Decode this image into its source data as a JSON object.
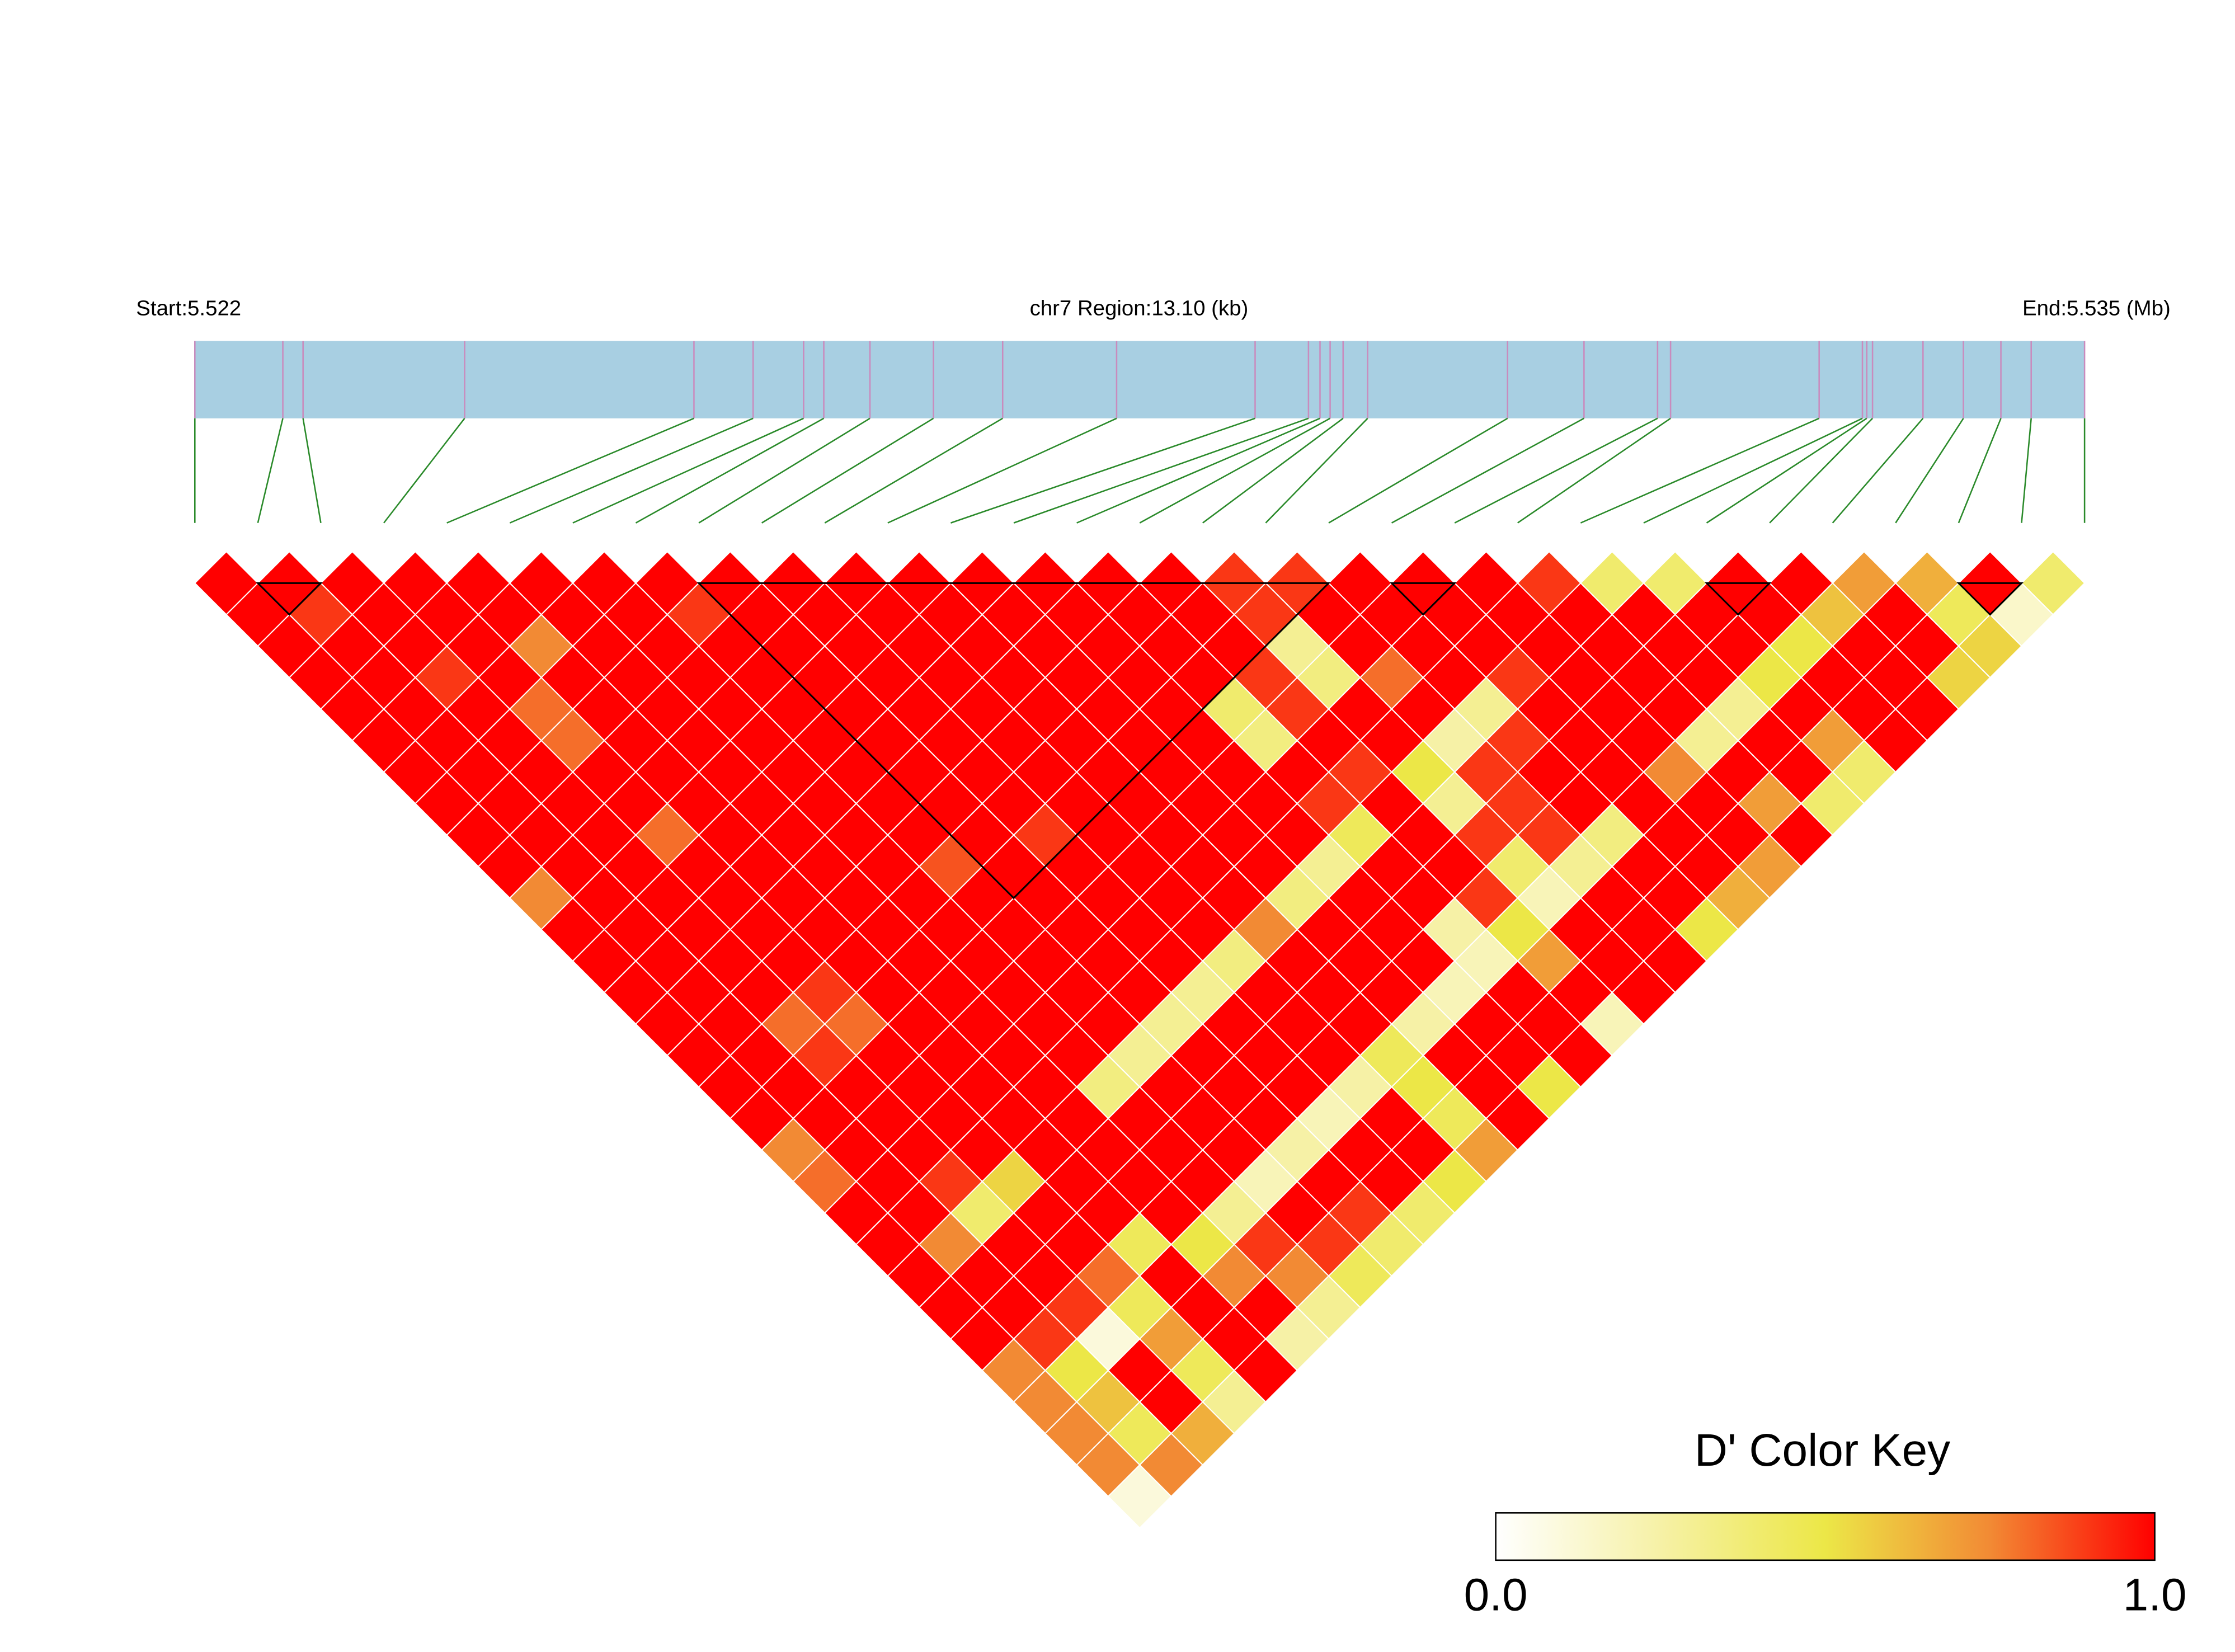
{
  "chart_data": {
    "type": "heatmap",
    "start_label": "Start:5.522",
    "region_label": "chr7 Region:13.10 (kb)",
    "end_label": "End:5.535 (Mb)",
    "xlim": [
      5.522,
      5.5351
    ],
    "positions": [
      5.522,
      5.52261,
      5.52275,
      5.52387,
      5.52546,
      5.52587,
      5.52622,
      5.52636,
      5.52668,
      5.52712,
      5.5276,
      5.52839,
      5.52935,
      5.52972,
      5.5298,
      5.52987,
      5.52996,
      5.53013,
      5.5311,
      5.53163,
      5.53214,
      5.53223,
      5.53326,
      5.53356,
      5.53359,
      5.53363,
      5.53398,
      5.53426,
      5.53452,
      5.53473,
      5.5351
    ],
    "bar_color": "#a8cfe2",
    "snp_line_color": "#c98bbd",
    "connector_color": "#2a8a2a",
    "dprime": [
      [
        1,
        1,
        1,
        1,
        1,
        1,
        1,
        1,
        1,
        1,
        1,
        1,
        1,
        1,
        1,
        1,
        0.9,
        0.9,
        1,
        1,
        1,
        0.9,
        0.4,
        0.4,
        1,
        1,
        0.7,
        0.65,
        1,
        0.4
      ],
      [
        1,
        0.9,
        1,
        1,
        1,
        1,
        1,
        0.9,
        1,
        1,
        1,
        1,
        1,
        1,
        1,
        1,
        0.9,
        1,
        1,
        1,
        1,
        1,
        1,
        1,
        1,
        0.6,
        1,
        0.45,
        0.15
      ],
      [
        1,
        1,
        1,
        1,
        0.75,
        1,
        1,
        1,
        1,
        1,
        1,
        1,
        1,
        1,
        1,
        1,
        0.3,
        1,
        1,
        1,
        1,
        1,
        1,
        1,
        0.5,
        1,
        1,
        0.55
      ],
      [
        1,
        1,
        0.9,
        1,
        1,
        1,
        1,
        1,
        1,
        1,
        1,
        1,
        1,
        1,
        1,
        0.9,
        0.35,
        0.8,
        1,
        0.9,
        1,
        1,
        1,
        0.5,
        1,
        1,
        0.55
      ],
      [
        1,
        1,
        1,
        0.8,
        1,
        1,
        1,
        1,
        1,
        1,
        1,
        1,
        1,
        1,
        0.4,
        0.9,
        1,
        1,
        0.3,
        1,
        1,
        1,
        0.3,
        1,
        1,
        1
      ],
      [
        1,
        1,
        1,
        0.8,
        1,
        1,
        1,
        1,
        1,
        1,
        1,
        1,
        1,
        1,
        0.35,
        1,
        1,
        0.25,
        0.9,
        1,
        1,
        0.3,
        1,
        0.7,
        1
      ],
      [
        1,
        1,
        1,
        1,
        1,
        1,
        1,
        1,
        1,
        1,
        1,
        1,
        1,
        1,
        1,
        0.9,
        0.5,
        0.9,
        1,
        1,
        0.75,
        1,
        1,
        0.4
      ],
      [
        1,
        1,
        1,
        1,
        1,
        1,
        1,
        1,
        1,
        1,
        1,
        1,
        1,
        1,
        0.9,
        1,
        0.3,
        0.9,
        1,
        1,
        1,
        0.7,
        0.4
      ],
      [
        1,
        1,
        1,
        0.8,
        1,
        1,
        1,
        1,
        1,
        0.9,
        1,
        1,
        1,
        1,
        0.45,
        1,
        0.9,
        0.9,
        0.35,
        1,
        1,
        1
      ],
      [
        1,
        1,
        1,
        1,
        1,
        1,
        1,
        0.85,
        1,
        1,
        1,
        1,
        1,
        0.3,
        1,
        1,
        0.4,
        0.3,
        1,
        1,
        0.7
      ],
      [
        0.75,
        1,
        1,
        1,
        1,
        1,
        1,
        1,
        1,
        1,
        1,
        1,
        0.35,
        1,
        1,
        0.9,
        0.2,
        1,
        1,
        0.65
      ],
      [
        1,
        1,
        1,
        1,
        1,
        1,
        1,
        1,
        1,
        1,
        1,
        0.75,
        1,
        1,
        0.25,
        0.5,
        1,
        1,
        0.5
      ],
      [
        1,
        1,
        1,
        1,
        1,
        1,
        1,
        1,
        1,
        1,
        0.35,
        1,
        1,
        1,
        0.2,
        0.7,
        1,
        1
      ],
      [
        1,
        1,
        1,
        0.9,
        1,
        1,
        1,
        1,
        1,
        0.3,
        1,
        1,
        1,
        0.2,
        1,
        1,
        1
      ],
      [
        1,
        1,
        0.8,
        0.8,
        1,
        1,
        1,
        1,
        0.3,
        1,
        1,
        1,
        0.25,
        1,
        1,
        0.2
      ],
      [
        1,
        1,
        0.9,
        1,
        1,
        1,
        1,
        0.3,
        1,
        1,
        1,
        0.45,
        1,
        1,
        1
      ],
      [
        1,
        1,
        1,
        1,
        1,
        1,
        0.35,
        1,
        1,
        1,
        0.25,
        0.5,
        1,
        0.5
      ],
      [
        1,
        1,
        1,
        1,
        1,
        1,
        1,
        1,
        1,
        0.2,
        1,
        0.45,
        1
      ],
      [
        0.75,
        1,
        1,
        1,
        1,
        1,
        1,
        1,
        0.25,
        1,
        1,
        0.7
      ],
      [
        0.8,
        1,
        0.9,
        0.55,
        1,
        1,
        1,
        0.2,
        1,
        1,
        0.5
      ],
      [
        1,
        1,
        0.4,
        1,
        1,
        1,
        0.3,
        1,
        0.9,
        0.4
      ],
      [
        1,
        0.75,
        1,
        1,
        0.45,
        0.5,
        0.9,
        0.9,
        0.4
      ],
      [
        1,
        1,
        1,
        0.8,
        1,
        0.75,
        0.75,
        0.45
      ],
      [
        1,
        1,
        0.9,
        0.45,
        1,
        1,
        0.3
      ],
      [
        1,
        0.9,
        0.1,
        0.7,
        1,
        0.25
      ],
      [
        0.75,
        0.5,
        1,
        0.45,
        1
      ],
      [
        0.75,
        0.6,
        1,
        0.3
      ],
      [
        0.75,
        0.45,
        0.65
      ],
      [
        0.75,
        0.75
      ],
      [
        0.1
      ]
    ],
    "blocks": [
      [
        2,
        3
      ],
      [
        9,
        19
      ],
      [
        20,
        21
      ],
      [
        25,
        26
      ],
      [
        29,
        30
      ]
    ],
    "block_color": "#000000",
    "cell_border_color": "#ffffff",
    "color_key": {
      "title": "D' Color Key",
      "clim": [
        0,
        1
      ],
      "colors": [
        "#ffffff",
        "#f6f1a6",
        "#ece747",
        "#f28a34",
        "#ff0000"
      ],
      "ticks": [
        {
          "value": 0,
          "label": "0.0"
        },
        {
          "value": 1,
          "label": "1.0"
        }
      ]
    }
  }
}
